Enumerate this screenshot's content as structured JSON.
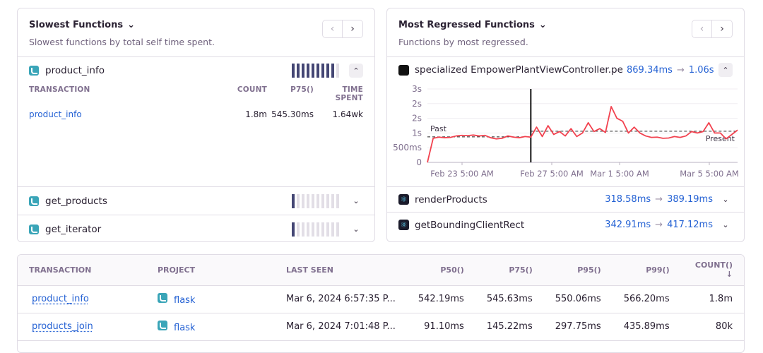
{
  "slowest": {
    "title": "Slowest Functions",
    "subtitle": "Slowest functions by total self time spent.",
    "items": [
      {
        "name": "product_info",
        "bars_filled": 9,
        "bars_total": 10,
        "expanded": true
      },
      {
        "name": "get_products",
        "bars_filled": 1,
        "bars_total": 10,
        "expanded": false
      },
      {
        "name": "get_iterator",
        "bars_filled": 1,
        "bars_total": 10,
        "expanded": false
      }
    ],
    "detail": {
      "headers": [
        "TRANSACTION",
        "COUNT",
        "P75()",
        "TIME SPENT"
      ],
      "row": {
        "transaction": "product_info",
        "count": "1.8m",
        "p75": "545.30ms",
        "time_spent": "1.64wk"
      }
    }
  },
  "regressed": {
    "title": "Most Regressed Functions",
    "subtitle": "Functions by most regressed.",
    "items": [
      {
        "name": "specialized EmpowerPlantViewController.perfo",
        "before": "869.34ms",
        "after": "1.06s",
        "platform": "apple",
        "expanded": true
      },
      {
        "name": "renderProducts",
        "before": "318.58ms",
        "after": "389.19ms",
        "platform": "react",
        "expanded": false
      },
      {
        "name": "getBoundingClientRect",
        "before": "342.91ms",
        "after": "417.12ms",
        "platform": "react",
        "expanded": false
      }
    ],
    "arrow": "→"
  },
  "chart_data": {
    "type": "line",
    "ylim": [
      0,
      2500
    ],
    "y_ticks": [
      {
        "v": 0,
        "label": "0"
      },
      {
        "v": 500,
        "label": "500ms"
      },
      {
        "v": 1000,
        "label": "1s"
      },
      {
        "v": 1500,
        "label": "2s"
      },
      {
        "v": 2000,
        "label": "2s"
      },
      {
        "v": 2500,
        "label": "3s"
      }
    ],
    "x_ticks": [
      "Feb 23 5:00 AM",
      "Feb 27 5:00 AM",
      "Mar 1 5:00 AM",
      "Mar 5 5:00 AM"
    ],
    "breakpoint_index": 18,
    "past_label": "Past",
    "present_label": "Present",
    "past_baseline": 869.34,
    "present_baseline": 1060,
    "color": "#f2424f",
    "values": [
      0,
      820,
      860,
      840,
      850,
      900,
      920,
      910,
      930,
      900,
      920,
      840,
      800,
      820,
      900,
      860,
      840,
      880,
      860,
      1200,
      880,
      1250,
      950,
      1050,
      900,
      1150,
      880,
      1000,
      1350,
      1050,
      1150,
      1020,
      1900,
      1500,
      1400,
      1000,
      1200,
      1000,
      900,
      850,
      860,
      820,
      830,
      880,
      850,
      900,
      1050,
      1000,
      1050,
      1350,
      1000,
      1000,
      800,
      950,
      1100
    ]
  },
  "table": {
    "headers": [
      "TRANSACTION",
      "PROJECT",
      "LAST SEEN",
      "P50()",
      "P75()",
      "P95()",
      "P99()",
      "COUNT() ↓"
    ],
    "rows": [
      {
        "transaction": "product_info",
        "project": "flask",
        "last_seen": "Mar 6, 2024 6:57:35 P...",
        "p50": "542.19ms",
        "p75": "545.63ms",
        "p95": "550.06ms",
        "p99": "566.20ms",
        "count": "1.8m"
      },
      {
        "transaction": "products_join",
        "project": "flask",
        "last_seen": "Mar 6, 2024 7:01:48 P...",
        "p50": "91.10ms",
        "p75": "145.22ms",
        "p95": "297.75ms",
        "p99": "435.89ms",
        "count": "80k"
      }
    ]
  }
}
